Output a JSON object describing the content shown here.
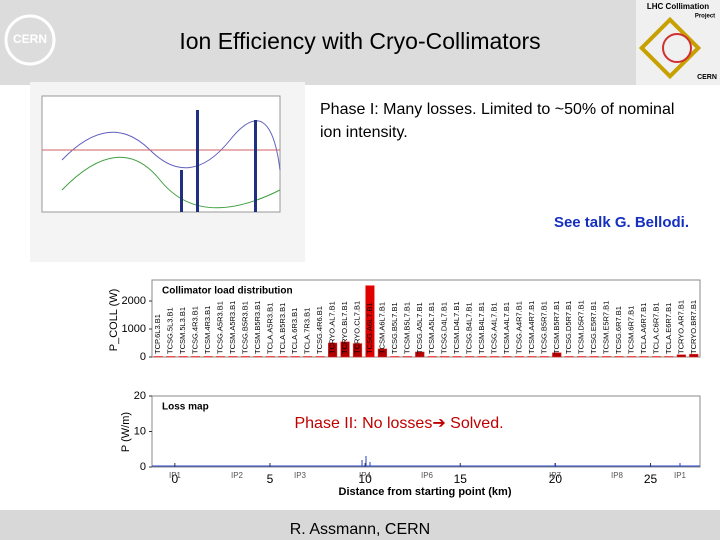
{
  "header": {
    "title": "Ion Efficiency with Cryo-Collimators",
    "logo_left": "CERN",
    "logo_right": {
      "line1": "LHC Collimation",
      "line2": "Project",
      "line3": "CERN"
    }
  },
  "phase1": {
    "text": "Phase I: Many losses. Limited to ~50% of nominal ion intensity.",
    "reference": "See talk G. Bellodi."
  },
  "collimator_chart": {
    "type": "bar",
    "title": "Collimator load distribution",
    "ylabel": "P_COLL (W)",
    "color": "#b00000",
    "highlight_color": "#e00000",
    "categories": [
      "TCP.6L3.B1",
      "TCSG.5L3.B1",
      "TCSM.5L3.B1",
      "TCSG.4R3.B1",
      "TCSM.4R3.B1",
      "TCSG.A5R3.B1",
      "TCSM.A5R3.B1",
      "TCSG.B5R3.B1",
      "TCSM.B5R3.B1",
      "TCLA.A5R3.B1",
      "TCLA.B5R3.B1",
      "TCLA.6R3.B1",
      "TCLA.7R3.B1",
      "TCSG.4R6.B1",
      "TCRYO.AL7.B1",
      "TCRYO.BL7.B1",
      "TCRYO.CL7.B1",
      "TCSG.A6L7.B1",
      "TCSM.A6L7.B1",
      "TCSG.B5L7.B1",
      "TCSM.B5L7.B1",
      "TCSG.A5L7.B1",
      "TCSM.A5L7.B1",
      "TCSG.D4L7.B1",
      "TCSM.D4L7.B1",
      "TCSG.B4L7.B1",
      "TCSM.B4L7.B1",
      "TCSG.A4L7.B1",
      "TCSM.A4L7.B1",
      "TCSG.A4R7.B1",
      "TCSM.A4R7.B1",
      "TCSG.B5R7.B1",
      "TCSM.B5R7.B1",
      "TCSG.D5R7.B1",
      "TCSM.D5R7.B1",
      "TCSG.E5R7.B1",
      "TCSM.E5R7.B1",
      "TCSG.6R7.B1",
      "TCSM.6R7.B1",
      "TCLA.A6R7.B1",
      "TCLA.C6R7.B1",
      "TCLA.E6R7.B1",
      "TCRYO.AR7.B1",
      "TCRYO.BR7.B1"
    ],
    "values": [
      20,
      20,
      20,
      20,
      20,
      20,
      20,
      20,
      20,
      20,
      20,
      20,
      20,
      20,
      500,
      540,
      480,
      2550,
      290,
      20,
      20,
      180,
      20,
      20,
      20,
      20,
      20,
      20,
      20,
      20,
      20,
      20,
      150,
      20,
      20,
      20,
      20,
      20,
      20,
      20,
      20,
      20,
      80,
      100
    ],
    "ylim": [
      0,
      2750
    ],
    "yticks": [
      0,
      1000,
      2000
    ]
  },
  "loss_map": {
    "title": "Loss map",
    "ylabel": "P (W/m)",
    "xlabel": "Distance from starting point (km)",
    "ylim": [
      0,
      20
    ],
    "yticks": [
      0,
      10,
      20
    ],
    "xlim": [
      -1.2,
      27.6
    ],
    "xticks": [
      0,
      5,
      10,
      15,
      20,
      25
    ],
    "ip_labels": [
      "IP1",
      "IP2",
      "IP3",
      "IP4",
      "IP6",
      "IP7",
      "IP8",
      "IP1"
    ]
  },
  "phase2": {
    "text": "Phase II: No losses➔ Solved."
  },
  "footer": {
    "author": "R. Assmann, CERN"
  }
}
